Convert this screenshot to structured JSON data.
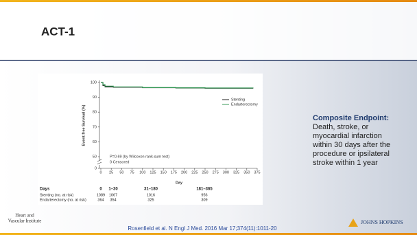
{
  "slide": {
    "title": "ACT-1",
    "endpoint": {
      "heading": "Composite Endpoint:",
      "lines": [
        "Death, stroke, or",
        "myocardial infarction",
        "within 30 days after the",
        "procedure or ipsilateral",
        "stroke within 1 year"
      ]
    },
    "citation": "Rosenfield et al. N Engl J Med. 2016 Mar 17;374(11):1011-20",
    "logo_left": [
      "Heart and",
      "Vascular Institute"
    ],
    "logo_right": "JOHNS HOPKINS"
  },
  "chart_data": {
    "type": "line",
    "xlabel": "Day",
    "ylabel": "Event-free Survival (%)",
    "x": [
      0,
      5,
      10,
      30,
      100,
      180,
      250,
      365
    ],
    "series": [
      {
        "name": "Stenting",
        "color": "#222222",
        "values": [
          100,
          98,
          97,
          96.8,
          96.5,
          96.3,
          96.1,
          96
        ]
      },
      {
        "name": "Endarterectomy",
        "color": "#3a9a5a",
        "values": [
          100,
          98.5,
          97.5,
          97,
          96.6,
          96.4,
          96.3,
          96.2
        ]
      }
    ],
    "xlim": [
      0,
      375
    ],
    "xticks": [
      0,
      25,
      50,
      75,
      100,
      125,
      150,
      175,
      200,
      225,
      250,
      275,
      300,
      325,
      350,
      375
    ],
    "ylim": [
      0,
      100
    ],
    "y_break": [
      0,
      50
    ],
    "yticks": [
      0,
      50,
      60,
      70,
      80,
      90,
      100
    ],
    "legend": "upper right",
    "annotations": [
      "P=0.69 (by Wilcoxon rank-sum test)",
      "0 Censored"
    ],
    "risk_table": {
      "header": "Days",
      "columns": [
        "0",
        "1–30",
        "31–180",
        "181–365"
      ],
      "rows": [
        {
          "label": "Stenting (no. at risk)",
          "values": [
            1089,
            1067,
            1016,
            956
          ]
        },
        {
          "label": "Endarterectomy (no. at risk)",
          "values": [
            364,
            354,
            325,
            309
          ]
        }
      ]
    }
  }
}
